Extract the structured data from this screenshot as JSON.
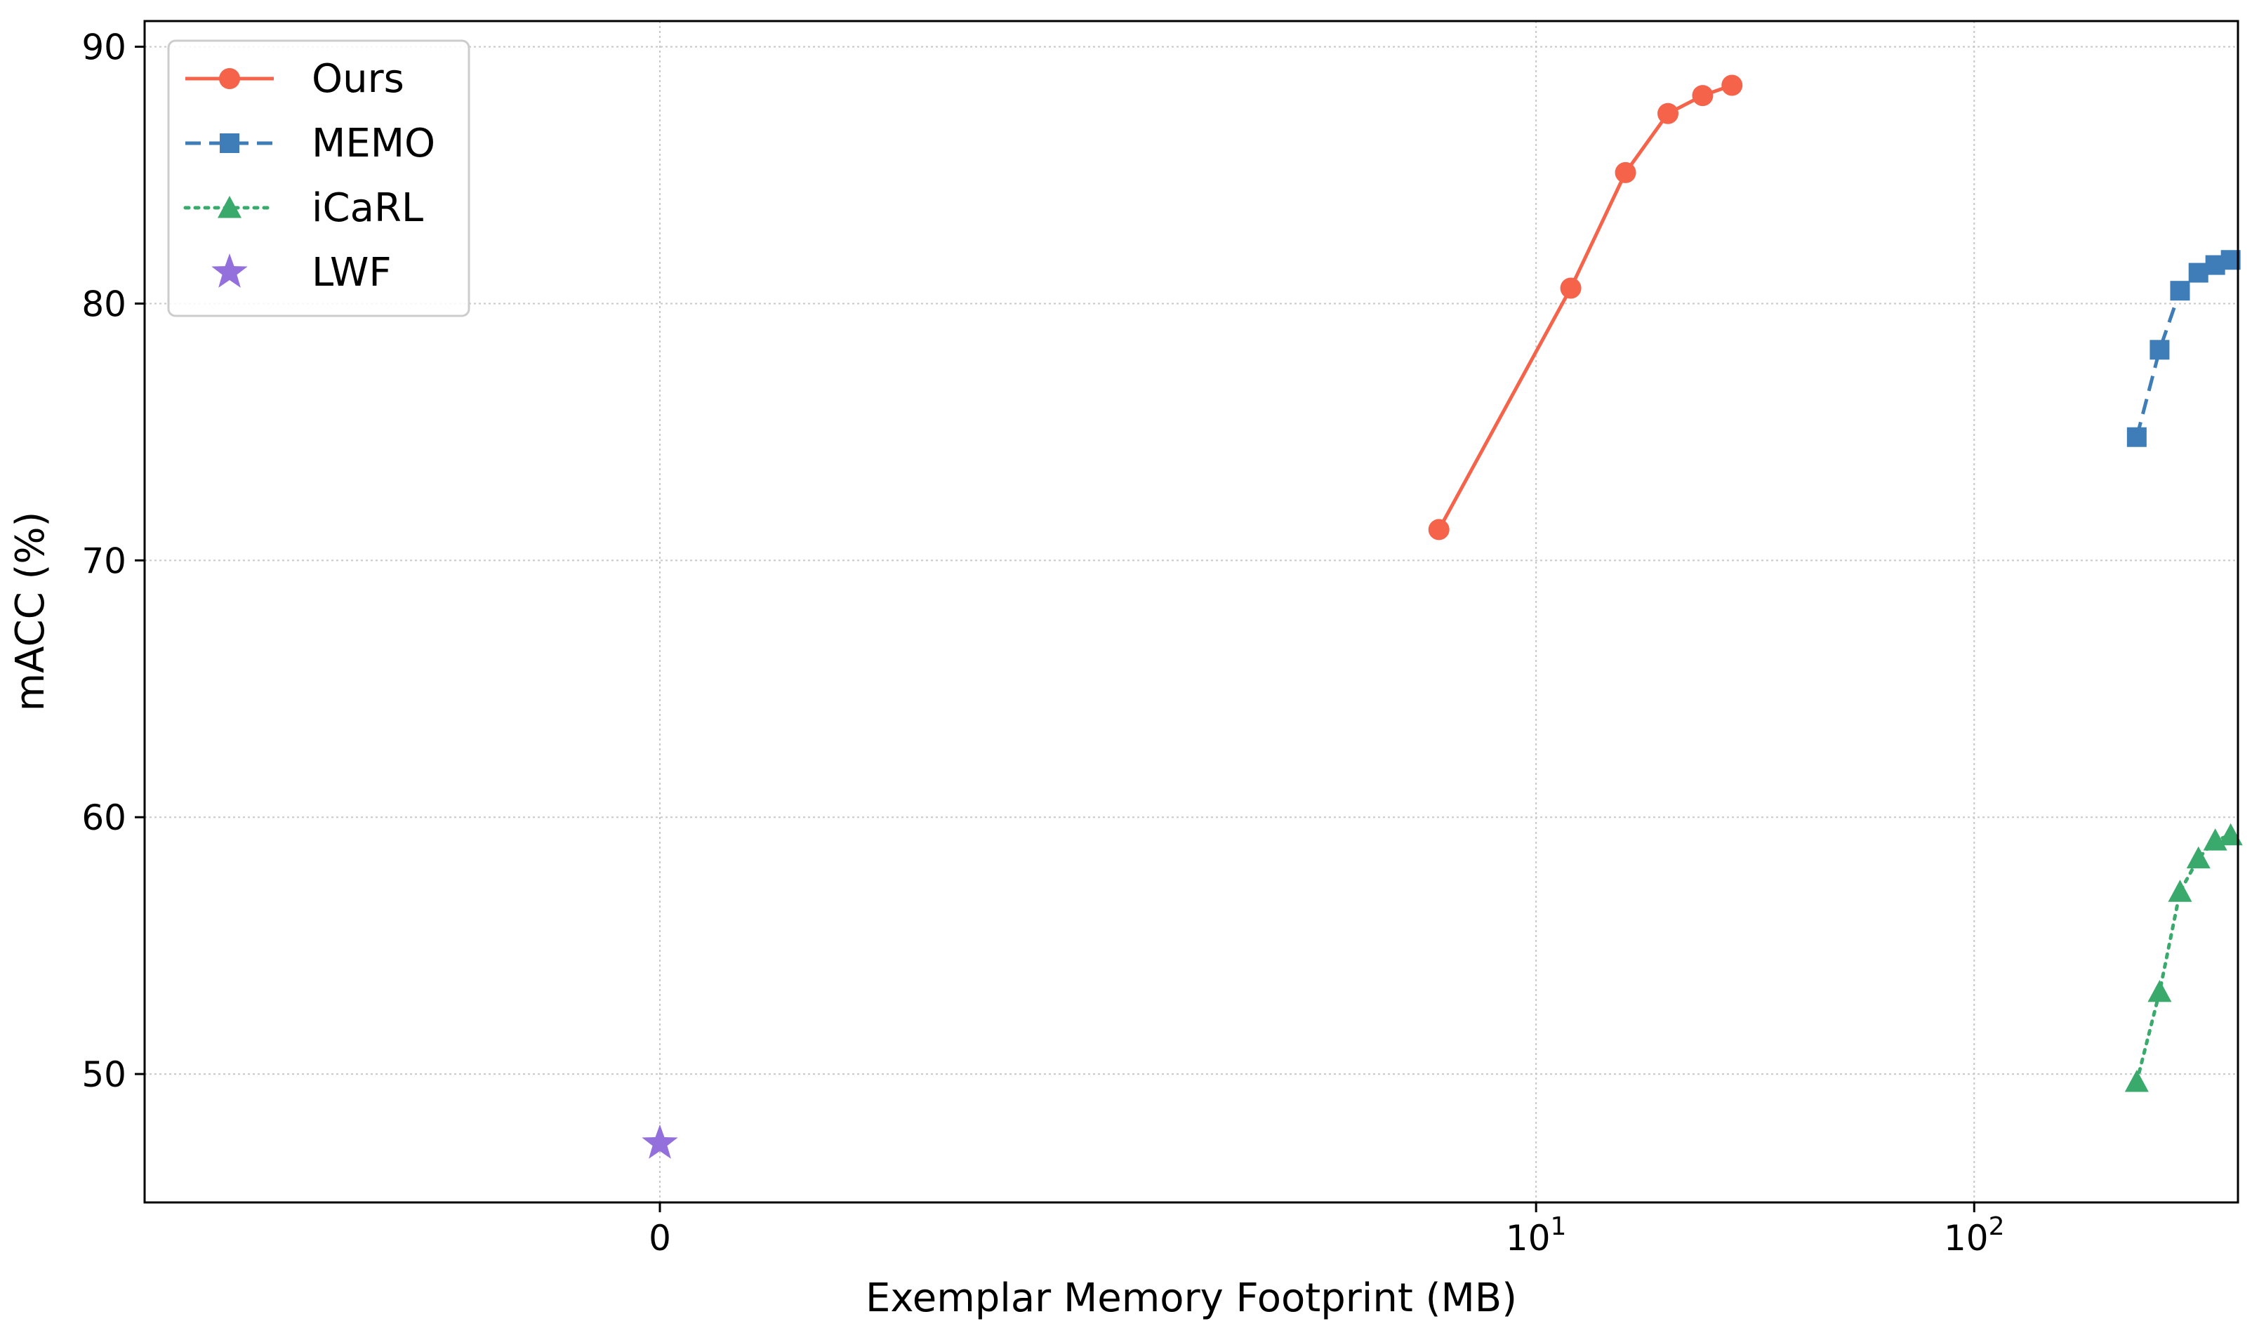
{
  "chart_data": {
    "type": "line",
    "xlabel": "Exemplar Memory Footprint (MB)",
    "ylabel": "mACC (%)",
    "x_scale": "symlog",
    "x_ticks": [
      {
        "value": 0,
        "base": "0",
        "exp": ""
      },
      {
        "value": 10,
        "base": "10",
        "exp": "1"
      },
      {
        "value": 100,
        "base": "10",
        "exp": "2"
      }
    ],
    "y_ticks": [
      50,
      60,
      70,
      80,
      90
    ],
    "xlim": [
      -1.5,
      400
    ],
    "ylim": [
      45,
      91
    ],
    "grid": true,
    "legend_position": "upper-left",
    "series": [
      {
        "name": "Ours",
        "color": "#f4634a",
        "line_style": "solid",
        "marker": "circle",
        "x": [
          6,
          12,
          16,
          20,
          24,
          28
        ],
        "y": [
          71.2,
          80.6,
          85.1,
          87.4,
          88.1,
          88.5
        ]
      },
      {
        "name": "MEMO",
        "color": "#3f7db8",
        "line_style": "dashed",
        "marker": "square",
        "x": [
          235,
          265,
          295,
          325,
          355,
          385
        ],
        "y": [
          74.8,
          78.2,
          80.5,
          81.2,
          81.5,
          81.7
        ]
      },
      {
        "name": "iCaRL",
        "color": "#3aaa6c",
        "line_style": "dotted",
        "marker": "triangle",
        "x": [
          235,
          265,
          295,
          325,
          355,
          385
        ],
        "y": [
          49.7,
          53.2,
          57.1,
          58.4,
          59.1,
          59.3
        ]
      },
      {
        "name": "LWF",
        "color": "#9370db",
        "line_style": "none",
        "marker": "star",
        "x": [
          0
        ],
        "y": [
          47.3
        ]
      }
    ]
  }
}
